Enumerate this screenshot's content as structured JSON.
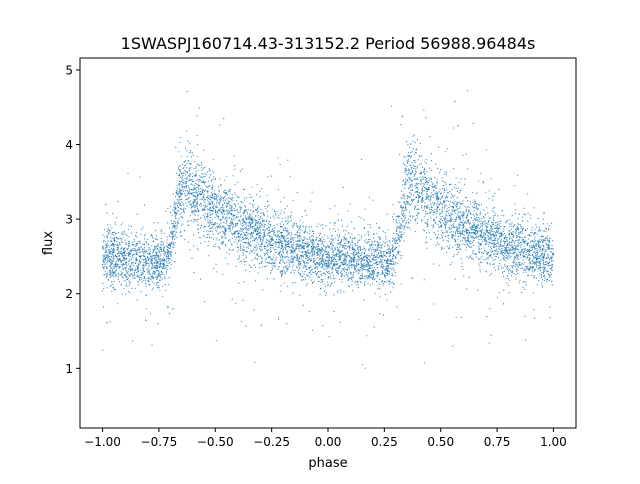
{
  "chart_data": {
    "type": "scatter",
    "title": "1SWASPJ160714.43-313152.2 Period 56988.96484s",
    "xlabel": "phase",
    "ylabel": "flux",
    "xlim": [
      -1.1,
      1.1
    ],
    "ylim": [
      0.2,
      5.16
    ],
    "xticks": [
      "-1.00",
      "-0.75",
      "-0.50",
      "-0.25",
      "0.00",
      "0.25",
      "0.50",
      "0.75",
      "1.00"
    ],
    "xtick_values": [
      -1,
      -0.75,
      -0.5,
      -0.25,
      0,
      0.25,
      0.5,
      0.75,
      1
    ],
    "yticks": [
      "1",
      "2",
      "3",
      "4",
      "5"
    ],
    "ytick_values": [
      1,
      2,
      3,
      4,
      5
    ],
    "grid": false,
    "marker_color": "#1f77b4",
    "mean_curve": {
      "phase": [
        0.0,
        0.05,
        0.1,
        0.15,
        0.2,
        0.25,
        0.28,
        0.3,
        0.32,
        0.34,
        0.36,
        0.38,
        0.4,
        0.45,
        0.5,
        0.55,
        0.6,
        0.65,
        0.7,
        0.75,
        0.8,
        0.85,
        0.9,
        0.95,
        1.0
      ],
      "flux": [
        2.5,
        2.48,
        2.46,
        2.45,
        2.44,
        2.43,
        2.45,
        2.6,
        2.95,
        3.3,
        3.55,
        3.5,
        3.4,
        3.25,
        3.12,
        3.02,
        2.93,
        2.85,
        2.77,
        2.7,
        2.64,
        2.58,
        2.54,
        2.51,
        2.5
      ],
      "scatter_sigma": 0.22
    }
  }
}
